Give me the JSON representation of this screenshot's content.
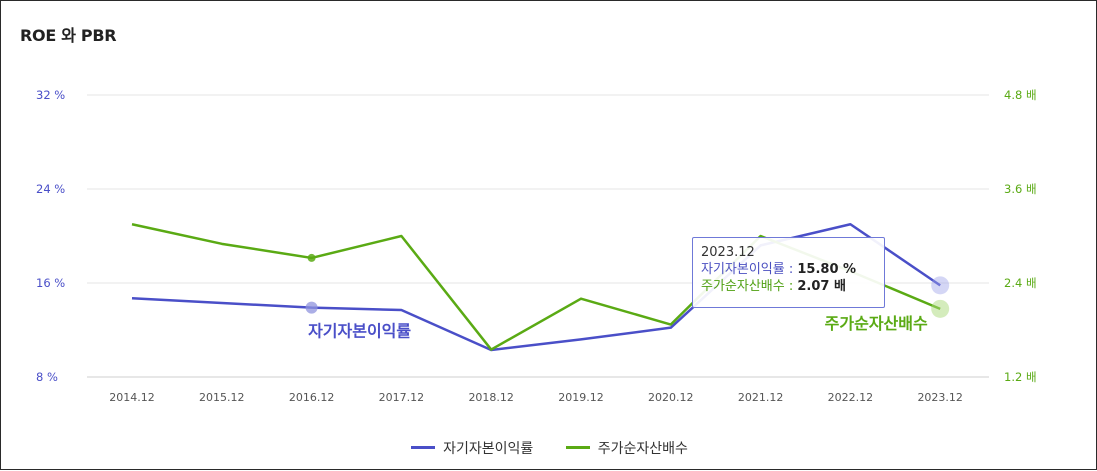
{
  "title": "ROE 와 PBR",
  "tooltip": {
    "date": "2023.12",
    "row1_label": "자기자본이익률 : ",
    "row1_value": "15.80 %",
    "row2_label": "주가순자산배수 : ",
    "row2_value": "2.07 배"
  },
  "colors": {
    "roe": "#4a4fc8",
    "pbr": "#5aaa14",
    "grid": "#e6e6e6"
  },
  "chart_data": {
    "type": "line",
    "title": "ROE 와 PBR",
    "categories": [
      "2014.12",
      "2015.12",
      "2016.12",
      "2017.12",
      "2018.12",
      "2019.12",
      "2020.12",
      "2021.12",
      "2022.12",
      "2023.12"
    ],
    "left_axis": {
      "ylim": [
        8,
        32
      ],
      "ticks": [
        8,
        16,
        24,
        32
      ],
      "tick_labels": [
        "8 %",
        "16 %",
        "24 %",
        "32 %"
      ]
    },
    "right_axis": {
      "ylim": [
        1.2,
        4.8
      ],
      "ticks": [
        1.2,
        2.4,
        3.6,
        4.8
      ],
      "tick_labels": [
        "1.2 배",
        "2.4 배",
        "3.6 배",
        "4.8 배"
      ]
    },
    "series": [
      {
        "name": "자기자본이익률",
        "axis": "left",
        "values": [
          14.7,
          14.3,
          13.9,
          13.7,
          10.3,
          11.2,
          12.2,
          19.2,
          21.0,
          15.8
        ]
      },
      {
        "name": "주가순자산배수",
        "axis": "right",
        "values": [
          3.15,
          2.9,
          2.72,
          3.0,
          1.55,
          2.2,
          1.87,
          3.0,
          2.55,
          2.07
        ]
      }
    ],
    "annotations": [
      {
        "series": "자기자본이익률",
        "category": "2016.12",
        "text": "자기자본이익률"
      },
      {
        "series": "주가순자산배수",
        "category": "2023.12",
        "text": "주가순자산배수"
      }
    ],
    "grid": true,
    "legend": "bottom-center"
  }
}
